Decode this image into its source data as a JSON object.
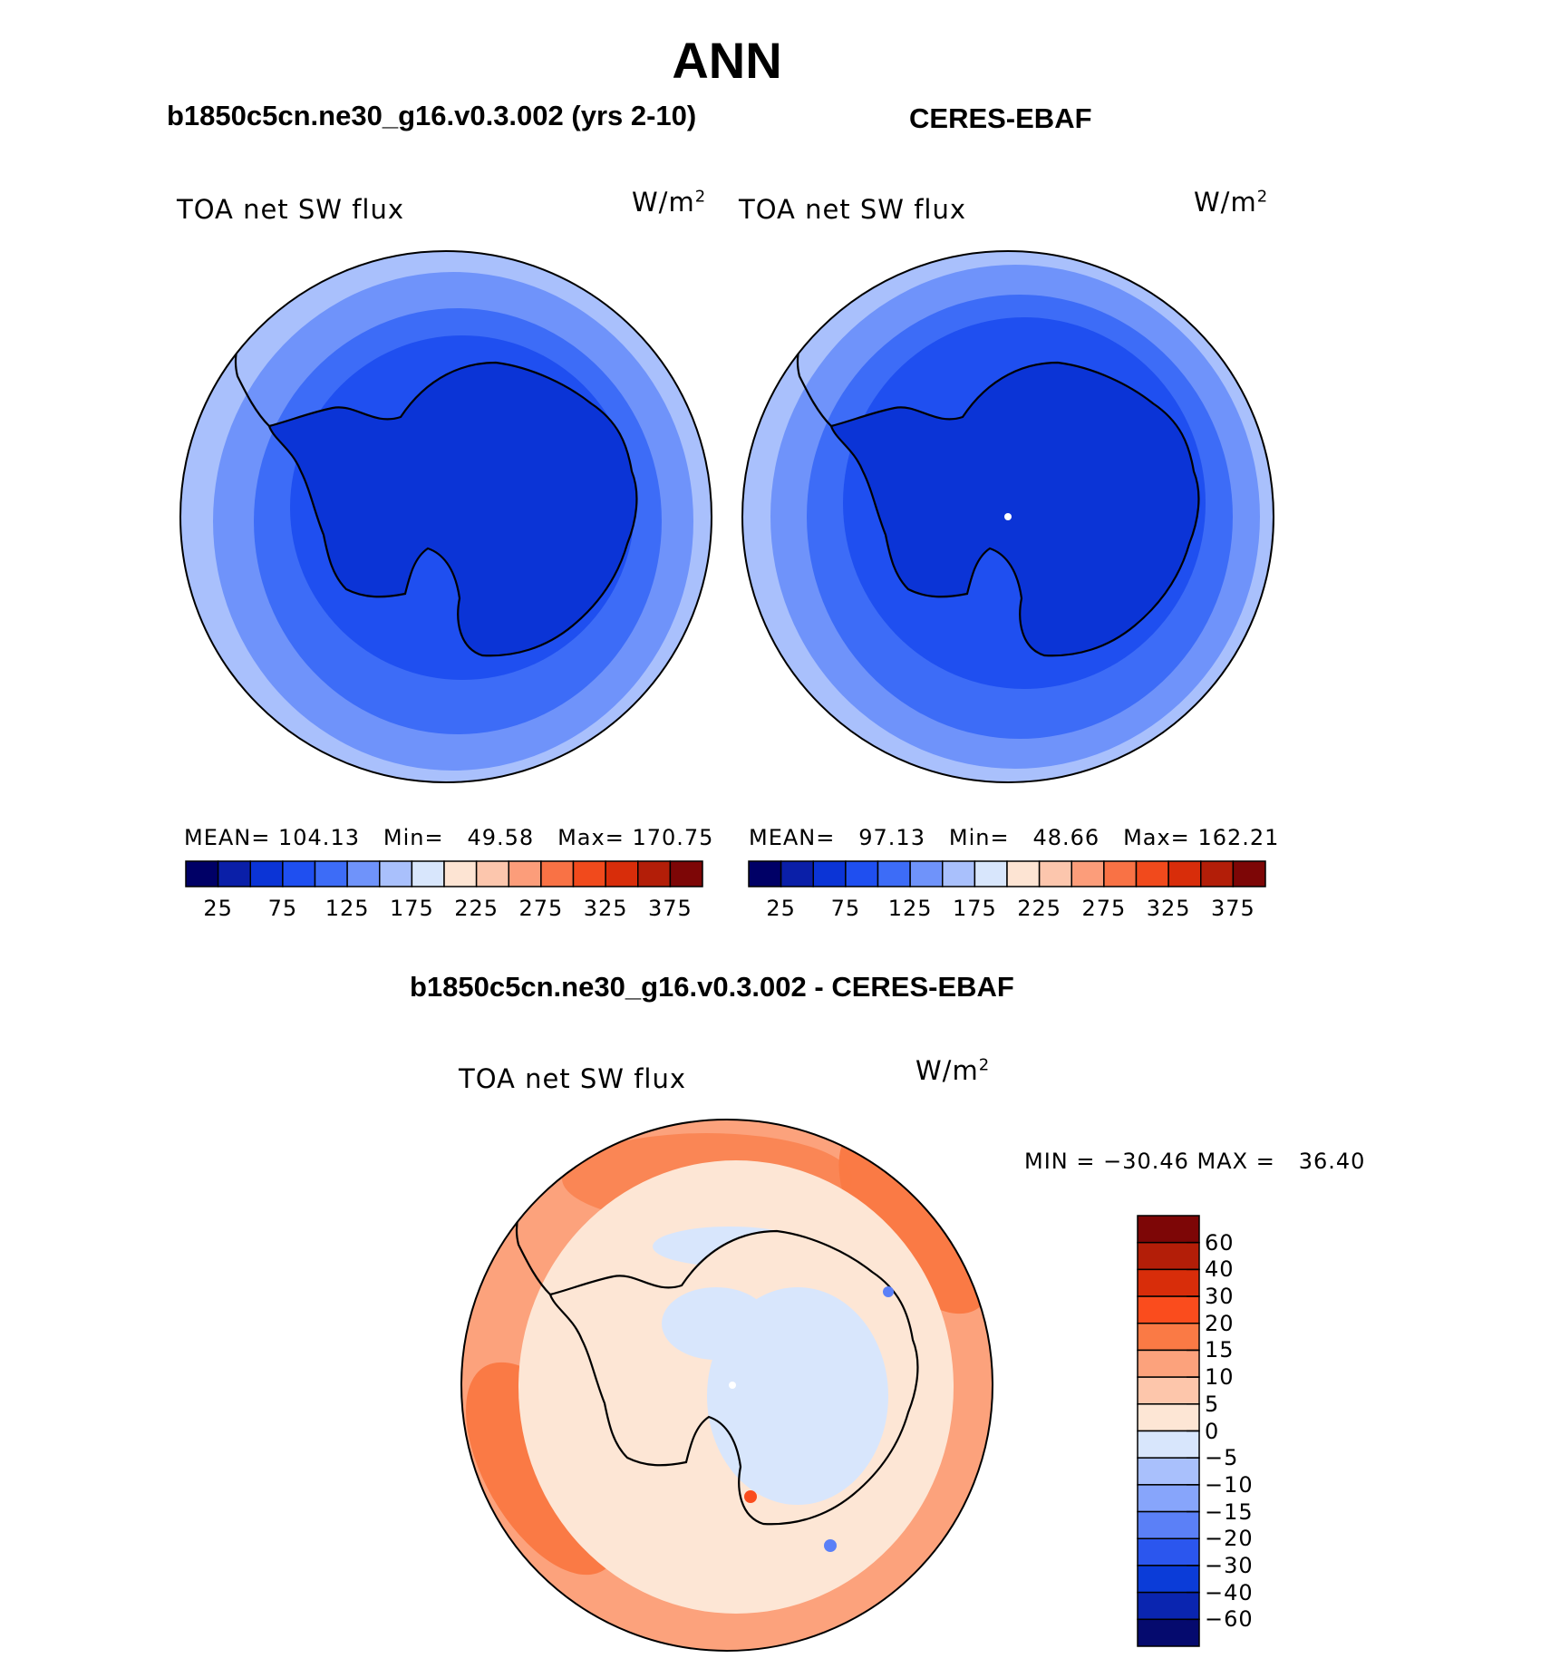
{
  "title": "ANN",
  "panels": [
    {
      "subtitle": "b1850c5cn.ne30_g16.v0.3.002 (yrs 2-10)",
      "variable": "TOA net SW flux",
      "units": "W/m",
      "units_sup": "2",
      "stats": {
        "mean_label": "MEAN=",
        "mean": "104.13",
        "min_label": "Min=",
        "min": "49.58",
        "max_label": "Max=",
        "max": "170.75"
      }
    },
    {
      "subtitle": "CERES-EBAF",
      "variable": "TOA net SW flux",
      "units": "W/m",
      "units_sup": "2",
      "stats": {
        "mean_label": "MEAN=",
        "mean": "97.13",
        "min_label": "Min=",
        "min": "48.66",
        "max_label": "Max=",
        "max": "162.21"
      }
    }
  ],
  "abs_colorbar": {
    "colors": [
      "#000066",
      "#0a1fa8",
      "#0b34d6",
      "#1f4ff0",
      "#3d6cf7",
      "#6f93fa",
      "#a9c0fc",
      "#d8e6fc",
      "#fde4d3",
      "#fcc6ad",
      "#fc9d7a",
      "#f97245",
      "#f14a1c",
      "#d82d0a",
      "#b31e08",
      "#7d0606"
    ],
    "tick_labels": [
      "25",
      "75",
      "125",
      "175",
      "225",
      "275",
      "325",
      "375"
    ]
  },
  "diff_panel": {
    "subtitle": "b1850c5cn.ne30_g16.v0.3.002 - CERES-EBAF",
    "variable": "TOA net SW flux",
    "units": "W/m",
    "units_sup": "2",
    "minmax": "MIN = −30.46 MAX =   36.40"
  },
  "diff_colorbar": {
    "colors": [
      "#7d0606",
      "#b31e08",
      "#d82d0a",
      "#fa4c1d",
      "#fa7a45",
      "#fca27c",
      "#fdc6ab",
      "#fde6d5",
      "#d8e6fc",
      "#a9c0fc",
      "#87a5fb",
      "#5b80f7",
      "#2b56ee",
      "#0b3cd8",
      "#0a25b0",
      "#050a6e"
    ],
    "tick_labels": [
      "60",
      "40",
      "30",
      "20",
      "15",
      "10",
      "5",
      "0",
      "−5",
      "−10",
      "−15",
      "−20",
      "−30",
      "−40",
      "−60"
    ]
  },
  "fill_colors": {
    "ocean_outer": "#a9c0fc",
    "ocean_mid": "#6f93fa",
    "ocean_inner": "#3d6cf7",
    "shelf": "#1f4ff0",
    "continent": "#0b34d6",
    "diff_warm_outer": "#fca27c",
    "diff_warm_strong": "#fa7a45",
    "diff_light": "#fde6d5",
    "diff_cool": "#d8e6fc",
    "diff_blue": "#5b80f7",
    "diff_red": "#fa4c1d"
  }
}
